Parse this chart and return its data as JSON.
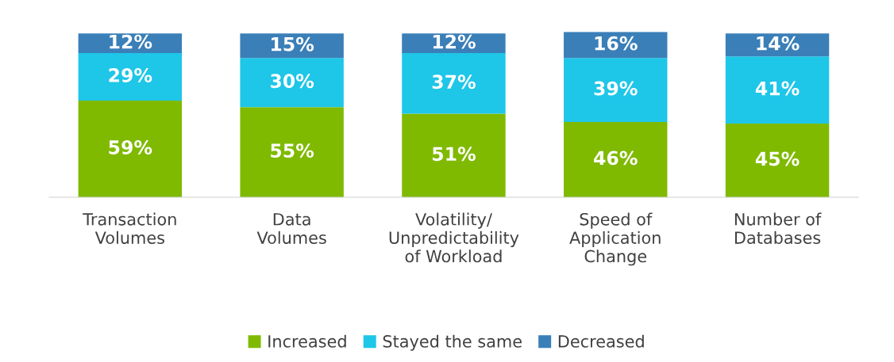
{
  "chart_data": {
    "type": "bar",
    "stacked": true,
    "legend": "bottom",
    "grid": false,
    "categories": [
      "Transaction\nVolumes",
      "Data\nVolumes",
      "Volatility/\nUnpredictability\nof Workload",
      "Speed of\nApplication\nChange",
      "Number of\nDatabases"
    ],
    "series": [
      {
        "name": "Increased",
        "color": "#7fba00",
        "values": [
          59,
          55,
          51,
          46,
          45
        ],
        "value_labels": [
          "59%",
          "55%",
          "51%",
          "46%",
          "45%"
        ]
      },
      {
        "name": "Stayed the same",
        "color": "#1ec6e8",
        "values": [
          29,
          30,
          37,
          39,
          41
        ],
        "value_labels": [
          "29%",
          "30%",
          "37%",
          "39%",
          "41%"
        ]
      },
      {
        "name": "Decreased",
        "color": "#3a7fb8",
        "values": [
          12,
          15,
          12,
          16,
          14
        ],
        "value_labels": [
          "12%",
          "15%",
          "12%",
          "16%",
          "14%"
        ]
      }
    ]
  }
}
